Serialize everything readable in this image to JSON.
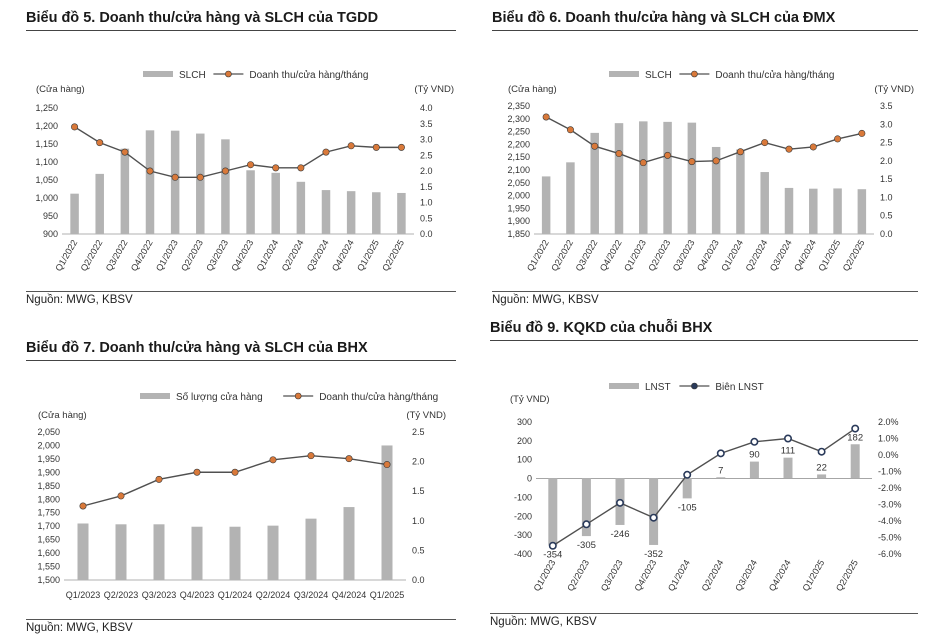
{
  "colors": {
    "bar": "#b3b3b3",
    "line": "#505050",
    "marker": "#d9793a",
    "marker_dark": "#2a3a5a",
    "axis": "#999999"
  },
  "chart_data": [
    {
      "id": "c5",
      "type": "bar+line",
      "title": "Biểu đồ 5. Doanh thu/cửa hàng và SLCH của TGDD",
      "source": "Nguồn: MWG, KBSV",
      "left_unit": "(Cửa hàng)",
      "right_unit": "(Tỷ VND)",
      "bar_name": "SLCH",
      "line_name": "Doanh thu/cửa hàng/tháng",
      "categories": [
        "Q1/2022",
        "Q2/2022",
        "Q3/2022",
        "Q4/2022",
        "Q1/2023",
        "Q2/2023",
        "Q3/2023",
        "Q4/2023",
        "Q1/2024",
        "Q2/2024",
        "Q3/2024",
        "Q4/2024",
        "Q1/2025",
        "Q2/2025"
      ],
      "bar_values": [
        1012,
        1067,
        1137,
        1188,
        1187,
        1179,
        1163,
        1077,
        1070,
        1045,
        1022,
        1019,
        1016,
        1014
      ],
      "line_values": [
        3.4,
        2.9,
        2.6,
        2.0,
        1.8,
        1.8,
        2.0,
        2.2,
        2.1,
        2.1,
        2.6,
        2.8,
        2.75,
        2.75
      ],
      "left_ticks": [
        "1,250",
        "1,200",
        "1,150",
        "1,100",
        "1,050",
        "1,000",
        "950",
        "900"
      ],
      "right_ticks": [
        "4.0",
        "3.5",
        "3.0",
        "2.5",
        "2.0",
        "1.5",
        "1.0",
        "0.5",
        "0.0"
      ],
      "ylim_left": [
        900,
        1250
      ],
      "ylim_right": [
        0,
        4
      ],
      "rotate_x": true
    },
    {
      "id": "c6",
      "type": "bar+line",
      "title": "Biểu đồ 6. Doanh thu/cửa hàng và SLCH của ĐMX",
      "source": "Nguồn: MWG, KBSV",
      "left_unit": "(Cửa hàng)",
      "right_unit": "(Tỷ VND)",
      "bar_name": "SLCH",
      "line_name": "Doanh thu/cửa hàng/tháng",
      "categories": [
        "Q1/2022",
        "Q2/2022",
        "Q3/2022",
        "Q4/2022",
        "Q1/2023",
        "Q2/2023",
        "Q3/2023",
        "Q4/2023",
        "Q1/2024",
        "Q2/2024",
        "Q3/2024",
        "Q4/2024",
        "Q1/2025",
        "Q2/2025"
      ],
      "bar_values": [
        2075,
        2130,
        2245,
        2283,
        2290,
        2288,
        2285,
        2190,
        2180,
        2092,
        2030,
        2027,
        2028,
        2025
      ],
      "line_values": [
        3.2,
        2.85,
        2.4,
        2.2,
        1.95,
        2.15,
        1.98,
        2.0,
        2.25,
        2.5,
        2.32,
        2.38,
        2.6,
        2.75
      ],
      "left_ticks": [
        "2,350",
        "2,300",
        "2,250",
        "2,200",
        "2,150",
        "2,100",
        "2,050",
        "2,000",
        "1,950",
        "1,900",
        "1,850"
      ],
      "right_ticks": [
        "3.5",
        "3.0",
        "2.5",
        "2.0",
        "1.5",
        "1.0",
        "0.5",
        "0.0"
      ],
      "ylim_left": [
        1850,
        2350
      ],
      "ylim_right": [
        0,
        3.5
      ],
      "rotate_x": true
    },
    {
      "id": "c7",
      "type": "bar+line",
      "title": "Biểu đồ 7. Doanh thu/cửa hàng và SLCH của BHX",
      "source": "Nguồn: MWG, KBSV",
      "left_unit": "(Cửa hàng)",
      "right_unit": "(Tỷ VND)",
      "bar_name": "Số lượng cửa hàng",
      "line_name": "Doanh thu/cửa hàng/tháng",
      "categories": [
        "Q1/2023",
        "Q2/2023",
        "Q3/2023",
        "Q4/2023",
        "Q1/2024",
        "Q2/2024",
        "Q3/2024",
        "Q4/2024",
        "Q1/2025"
      ],
      "bar_values": [
        1710,
        1707,
        1707,
        1698,
        1698,
        1702,
        1728,
        1771,
        2000
      ],
      "line_values": [
        1.25,
        1.42,
        1.7,
        1.82,
        1.82,
        2.03,
        2.1,
        2.05,
        1.95
      ],
      "left_ticks": [
        "2,050",
        "2,000",
        "1,950",
        "1,900",
        "1,850",
        "1,800",
        "1,750",
        "1,700",
        "1,650",
        "1,600",
        "1,550",
        "1,500"
      ],
      "right_ticks": [
        "2.5",
        "2.0",
        "1.5",
        "1.0",
        "0.5",
        "0.0"
      ],
      "ylim_left": [
        1500,
        2050
      ],
      "ylim_right": [
        0,
        2.5
      ],
      "rotate_x": false
    },
    {
      "id": "c9",
      "type": "bar+line",
      "title": "Biểu đồ 9. KQKD của chuỗi BHX",
      "source": "Nguồn: MWG, KBSV",
      "left_unit": "(Tỷ VND)",
      "right_unit": "",
      "bar_name": "LNST",
      "line_name": "Biên LNST",
      "categories": [
        "Q1/2023",
        "Q2/2023",
        "Q3/2023",
        "Q4/2023",
        "Q1/2024",
        "Q2/2024",
        "Q3/2024",
        "Q4/2024",
        "Q1/2025",
        "Q2/2025"
      ],
      "bar_values": [
        -354,
        -305,
        -246,
        -352,
        -105,
        7,
        90,
        111,
        22,
        182
      ],
      "bar_labels": [
        "-354",
        "-305",
        "-246",
        "-352",
        "-105",
        "7",
        "90",
        "111",
        "22",
        "182"
      ],
      "line_values": [
        -5.5,
        -4.2,
        -2.9,
        -3.8,
        -1.2,
        0.1,
        0.8,
        1.0,
        0.2,
        1.6
      ],
      "left_ticks": [
        "300",
        "200",
        "100",
        "0",
        "-100",
        "-200",
        "-300",
        "-400"
      ],
      "right_ticks": [
        "2.0%",
        "1.0%",
        "0.0%",
        "-1.0%",
        "-2.0%",
        "-3.0%",
        "-4.0%",
        "-5.0%",
        "-6.0%"
      ],
      "ylim_left": [
        -400,
        300
      ],
      "ylim_right": [
        -6,
        2
      ],
      "rotate_x": true
    }
  ]
}
